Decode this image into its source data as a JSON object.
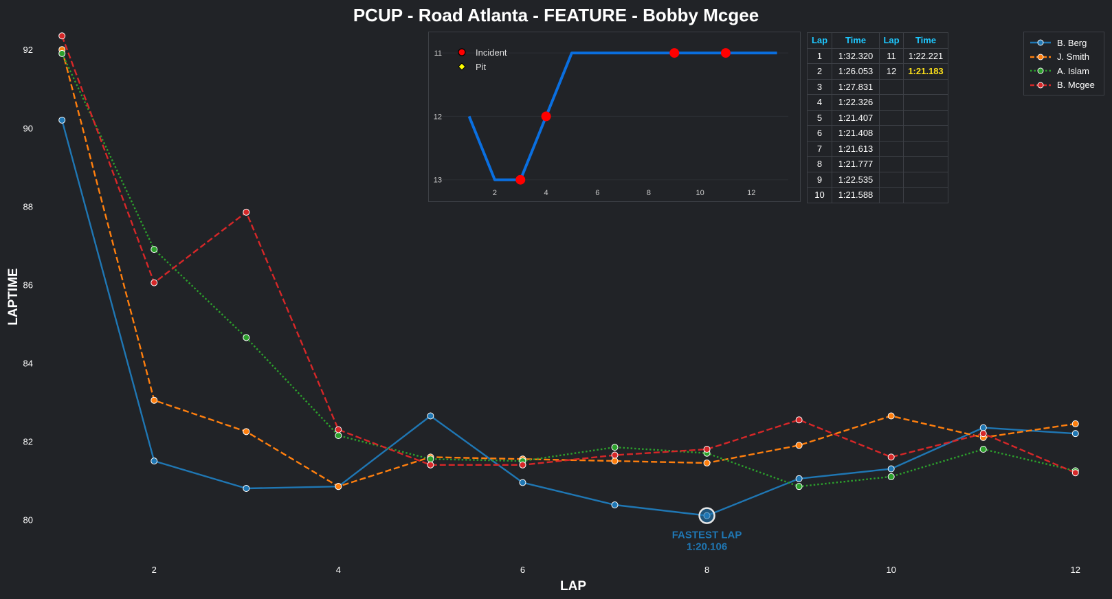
{
  "chart_data": [
    {
      "type": "line",
      "title": "PCUP - Road Atlanta - FEATURE - Bobby Mcgee",
      "xlabel": "LAP",
      "ylabel": "LAPTIME",
      "xlim": [
        0.7,
        12.3
      ],
      "ylim": [
        79.1,
        92.6
      ],
      "xticks": [
        2,
        4,
        6,
        8,
        10,
        12
      ],
      "yticks": [
        80,
        82,
        84,
        86,
        88,
        90,
        92
      ],
      "x": [
        1,
        2,
        3,
        4,
        5,
        6,
        7,
        8,
        9,
        10,
        11,
        12
      ],
      "series": [
        {
          "name": "B. Berg",
          "color": "#1f77b4",
          "dash": "solid",
          "values": [
            90.2,
            81.5,
            80.8,
            80.85,
            82.65,
            80.95,
            80.38,
            80.106,
            81.05,
            81.3,
            82.35,
            82.2
          ]
        },
        {
          "name": "J. Smith",
          "color": "#ff7f0e",
          "dash": "dashed",
          "values": [
            92.0,
            83.05,
            82.25,
            80.85,
            81.6,
            81.55,
            81.5,
            81.45,
            81.9,
            82.65,
            82.1,
            82.45
          ]
        },
        {
          "name": "A. Islam",
          "color": "#2ca02c",
          "dash": "dotted",
          "values": [
            91.9,
            86.9,
            84.65,
            82.15,
            81.55,
            81.5,
            81.85,
            81.7,
            80.85,
            81.1,
            81.8,
            81.25
          ]
        },
        {
          "name": "B. Mcgee",
          "color": "#d62728",
          "dash": "dashed",
          "values": [
            92.35,
            86.05,
            87.85,
            82.3,
            81.4,
            81.4,
            81.65,
            81.8,
            82.55,
            81.6,
            82.2,
            81.2
          ]
        }
      ],
      "annotation": {
        "series": "B. Berg",
        "x": 8,
        "y": 80.106,
        "line1": "FASTEST LAP",
        "line2": "1:20.106",
        "color": "#1f77b4"
      },
      "legend_position": "top-right",
      "grid": false
    },
    {
      "type": "line",
      "title": "",
      "xlim": [
        0.1,
        13.6
      ],
      "ylim": [
        13.35,
        10.75
      ],
      "xticks": [
        2,
        4,
        6,
        8,
        10,
        12
      ],
      "yticks": [
        11,
        12,
        13
      ],
      "x": [
        1,
        2,
        3,
        4,
        5,
        6,
        7,
        8,
        9,
        10,
        11,
        12,
        13
      ],
      "values": [
        12,
        13,
        13,
        12,
        11,
        11,
        11,
        11,
        11,
        11,
        11,
        11,
        11
      ],
      "color": "#0a6fe0",
      "incidents": [
        3,
        4,
        9,
        11
      ],
      "pits": [],
      "legend": [
        {
          "label": "Incident",
          "marker": "circle",
          "color": "#ff0000"
        },
        {
          "label": "Pit",
          "marker": "diamond",
          "color": "#ffff00"
        }
      ],
      "grid": true
    }
  ],
  "lap_table": {
    "headers": [
      "Lap",
      "Time",
      "Lap",
      "Time"
    ],
    "rows": [
      [
        "1",
        "1:32.320",
        "11",
        "1:22.221"
      ],
      [
        "2",
        "1:26.053",
        "12",
        "1:21.183"
      ],
      [
        "3",
        "1:27.831",
        "",
        ""
      ],
      [
        "4",
        "1:22.326",
        "",
        ""
      ],
      [
        "5",
        "1:21.407",
        "",
        ""
      ],
      [
        "6",
        "1:21.408",
        "",
        ""
      ],
      [
        "7",
        "1:21.613",
        "",
        ""
      ],
      [
        "8",
        "1:21.777",
        "",
        ""
      ],
      [
        "9",
        "1:22.535",
        "",
        ""
      ],
      [
        "10",
        "1:21.588",
        "",
        ""
      ]
    ],
    "fastest_time": "1:21.183",
    "header_color": "#1ec8ff",
    "fastest_color": "#ffe21a"
  },
  "colors": {
    "background": "#212327",
    "text": "#ffffff",
    "border": "#3d4046"
  }
}
